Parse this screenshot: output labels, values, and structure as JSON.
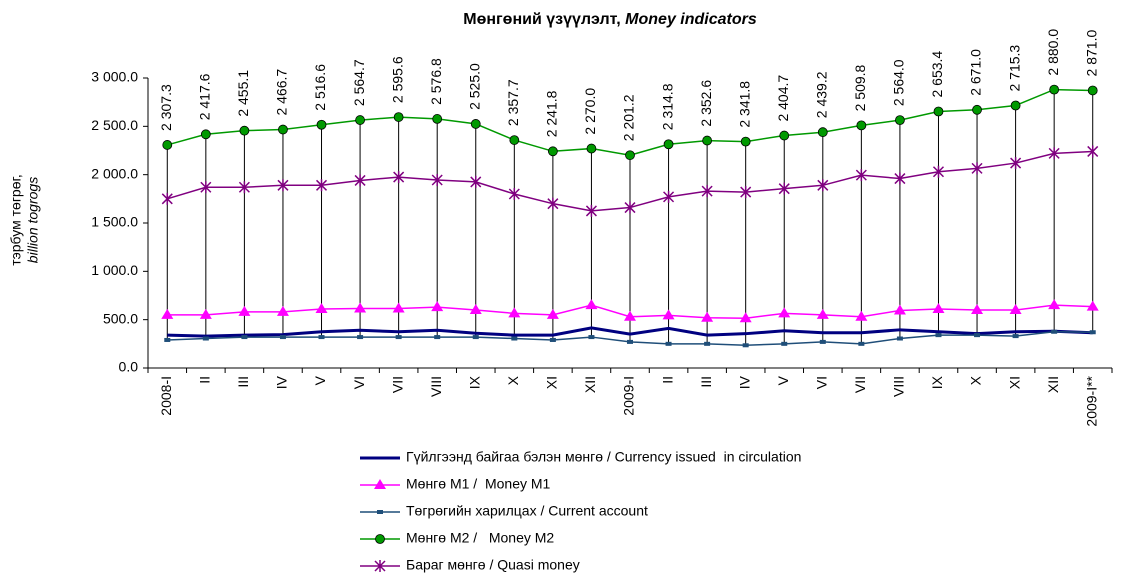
{
  "chart_data": {
    "type": "line",
    "title": "Мөнгөний үзүүлэлт,",
    "title_en": "Money indicators",
    "y_label": "тэрбум төгрөг,",
    "y_label_en": "billion togrogs",
    "categories": [
      "2008-I",
      "II",
      "III",
      "IV",
      "V",
      "VI",
      "VII",
      "VIII",
      "IX",
      "X",
      "XI",
      "XII",
      "2009-I",
      "II",
      "III",
      "IV",
      "V",
      "VI",
      "VII",
      "VIII",
      "IX",
      "X",
      "XI",
      "XII",
      "2009-I**"
    ],
    "ylim": [
      0,
      3000
    ],
    "yticks": [
      {
        "value": 0,
        "label": "0.0"
      },
      {
        "value": 500,
        "label": "500.0"
      },
      {
        "value": 1000,
        "label": "1 000.0"
      },
      {
        "value": 1500,
        "label": "1 500.0"
      },
      {
        "value": 2000,
        "label": "2 000.0"
      },
      {
        "value": 2500,
        "label": "2 500.0"
      },
      {
        "value": 3000,
        "label": "3 000.0"
      }
    ],
    "series": [
      {
        "name": "Гүйлгээнд байгаа бэлэн мөнгө / Currency issued  in circulation",
        "color": "#000080",
        "marker": "none",
        "values": [
          340,
          330,
          340,
          345,
          375,
          390,
          375,
          390,
          360,
          340,
          340,
          415,
          350,
          410,
          340,
          355,
          385,
          365,
          365,
          395,
          375,
          355,
          375,
          380,
          365
        ]
      },
      {
        "name": "Мөнгө М1 /  Money M1",
        "color": "#ff00ff",
        "marker": "triangle",
        "values": [
          550,
          550,
          580,
          580,
          610,
          615,
          615,
          630,
          600,
          565,
          550,
          650,
          530,
          545,
          520,
          515,
          565,
          550,
          530,
          595,
          610,
          600,
          600,
          650,
          635
        ]
      },
      {
        "name": "Төгрөгийн харилцах / Current account",
        "color": "#1f4e79",
        "marker": "square",
        "values": [
          290,
          305,
          320,
          320,
          320,
          320,
          320,
          320,
          320,
          305,
          290,
          320,
          270,
          250,
          250,
          235,
          250,
          270,
          250,
          305,
          340,
          340,
          330,
          375,
          370
        ]
      },
      {
        "name": "Мөнгө М2 /   Money M2",
        "color": "#009900",
        "marker": "circle",
        "values": [
          2307.3,
          2417.6,
          2455.1,
          2466.7,
          2516.6,
          2564.7,
          2595.6,
          2576.8,
          2525.0,
          2357.7,
          2241.8,
          2270.0,
          2201.2,
          2314.8,
          2352.6,
          2341.8,
          2404.7,
          2439.2,
          2509.8,
          2564.0,
          2653.4,
          2671.0,
          2715.3,
          2880.0,
          2871.0
        ],
        "value_labels": [
          "2 307.3",
          "2 417.6",
          "2 455.1",
          "2 466.7",
          "2 516.6",
          "2 564.7",
          "2 595.6",
          "2 576.8",
          "2 525.0",
          "2 357.7",
          "2 241.8",
          "2 270.0",
          "2 201.2",
          "2 314.8",
          "2 352.6",
          "2 341.8",
          "2 404.7",
          "2 439.2",
          "2 509.8",
          "2 564.0",
          "2 653.4",
          "2 671.0",
          "2 715.3",
          "2 880.0",
          "2 871.0"
        ]
      },
      {
        "name": "Бараг мөнгө / Quasi money",
        "color": "#800080",
        "marker": "star",
        "values": [
          1750,
          1870,
          1870,
          1890,
          1890,
          1940,
          1975,
          1945,
          1925,
          1800,
          1700,
          1625,
          1660,
          1770,
          1830,
          1820,
          1855,
          1890,
          1995,
          1960,
          2030,
          2065,
          2120,
          2220,
          2240
        ]
      }
    ]
  }
}
